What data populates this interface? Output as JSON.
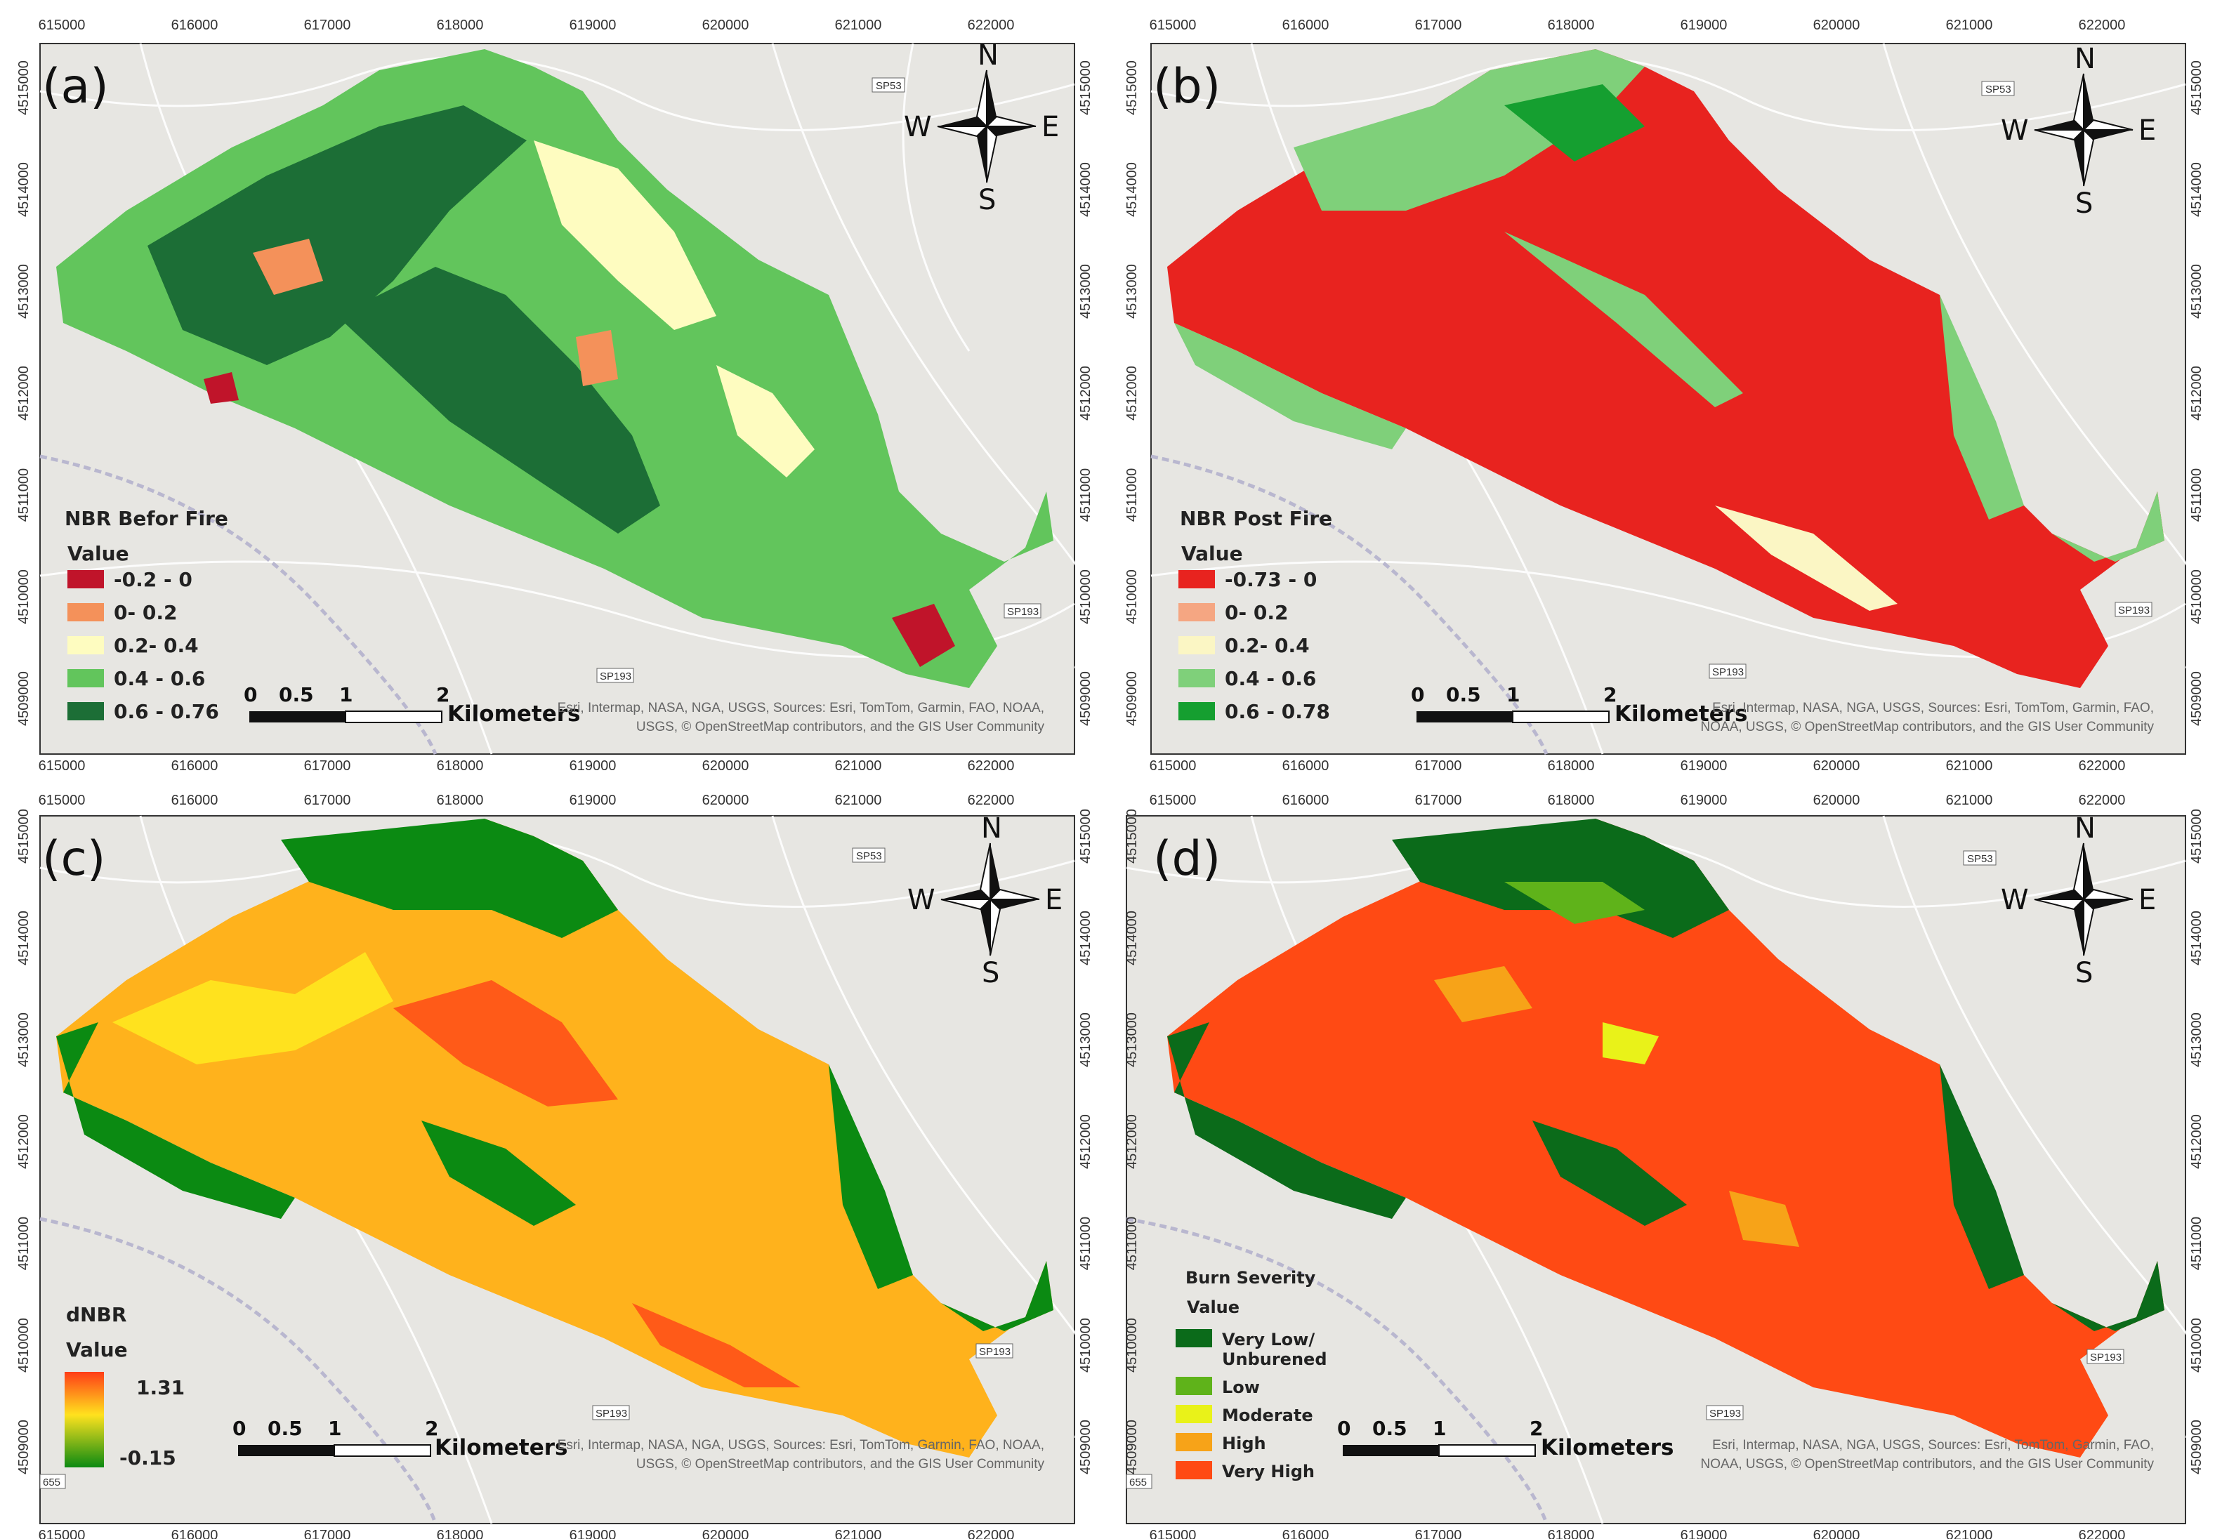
{
  "x_ticks": [
    "615000",
    "616000",
    "617000",
    "618000",
    "619000",
    "620000",
    "621000",
    "622000"
  ],
  "y_ticks": [
    "4509000",
    "4510000",
    "4511000",
    "4512000",
    "4513000",
    "4514000",
    "4515000"
  ],
  "compass": {
    "n": "N",
    "s": "S",
    "e": "E",
    "w": "W"
  },
  "scale_bar": {
    "labels": [
      "0",
      "0.5",
      "1",
      "2"
    ],
    "unit": "Kilometers"
  },
  "attribution": {
    "line1": "Esri, Intermap, NASA, NGA, USGS, Sources: Esri, TomTom, Garmin, FAO, NOAA,",
    "line2": "USGS, © OpenStreetMap contributors, and the GIS User Community",
    "line1_alt": "Esri, Intermap, NASA, NGA, USGS, Sources: Esri, TomTom, Garmin, FAO,",
    "line2_alt": "NOAA, USGS, © OpenStreetMap contributors, and the GIS User Community"
  },
  "roads": {
    "sp53": "SP53",
    "sp193": "SP193",
    "r655": "655"
  },
  "panels": [
    {
      "letter": "(a)",
      "legend_title": "NBR Befor Fire",
      "legend_subtitle": "Value",
      "classes": [
        {
          "label": "-0.2 - 0",
          "color": "#c0142a"
        },
        {
          "label": "0- 0.2",
          "color": "#f4915a"
        },
        {
          "label": "0.2- 0.4",
          "color": "#fefcc0"
        },
        {
          "label": "0.4 - 0.6",
          "color": "#62c55c"
        },
        {
          "label": "0.6 - 0.76",
          "color": "#1c6e36"
        }
      ]
    },
    {
      "letter": "(b)",
      "legend_title": "NBR Post Fire",
      "legend_subtitle": "Value",
      "classes": [
        {
          "label": "-0.73 - 0",
          "color": "#e8231f"
        },
        {
          "label": "0- 0.2",
          "color": "#f5a682"
        },
        {
          "label": "0.2- 0.4",
          "color": "#fbf6c4"
        },
        {
          "label": "0.4 - 0.6",
          "color": "#7fd07a"
        },
        {
          "label": "0.6 - 0.78",
          "color": "#159f30"
        }
      ]
    },
    {
      "letter": "(c)",
      "legend_title": "dNBR",
      "legend_subtitle": "Value",
      "ramp": {
        "high": "1.31",
        "low": "-0.15",
        "colors": [
          "#ff3d17",
          "#ffe21e",
          "#0b8a12"
        ]
      }
    },
    {
      "letter": "(d)",
      "legend_title": "Burn Severity",
      "legend_subtitle": "Value",
      "classes": [
        {
          "label": "Very Low/",
          "label2": "Unburened",
          "color": "#0b6b1a"
        },
        {
          "label": "Low",
          "color": "#5fb31a"
        },
        {
          "label": "Moderate",
          "color": "#e9f219"
        },
        {
          "label": "High",
          "color": "#f7a318"
        },
        {
          "label": "Very High",
          "color": "#ff4a14"
        }
      ]
    }
  ],
  "colors": {
    "basemap": "#e7e6e2",
    "road": "#ffffff",
    "highway": "#b9b7cf",
    "frame": "#333333"
  }
}
